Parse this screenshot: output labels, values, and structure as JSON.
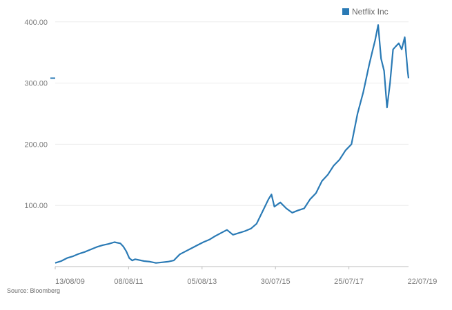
{
  "legend": {
    "label": "Netflix Inc",
    "color": "#2a7ab5"
  },
  "source": "Source: Bloomberg",
  "price_marker": {
    "value": 308,
    "color": "#2a7ab5"
  },
  "chart_data": {
    "type": "line",
    "title": "",
    "xlabel": "",
    "ylabel": "",
    "ylim": [
      0,
      420
    ],
    "grid": true,
    "legend_position": "top-right",
    "y_ticks": [
      "100.00",
      "200.00",
      "300.00",
      "400.00"
    ],
    "y_tick_values": [
      100,
      200,
      300,
      400
    ],
    "x_ticks": [
      "13/08/09",
      "08/08/11",
      "05/08/13",
      "30/07/15",
      "25/07/17",
      "22/07/19"
    ],
    "series": [
      {
        "name": "Netflix Inc",
        "color": "#2a7ab5",
        "x": [
          "2009-08-13",
          "2009-10-13",
          "2009-12-13",
          "2010-02-13",
          "2010-04-13",
          "2010-06-13",
          "2010-08-13",
          "2010-10-13",
          "2010-12-13",
          "2011-02-13",
          "2011-04-13",
          "2011-06-13",
          "2011-07-13",
          "2011-08-13",
          "2011-09-13",
          "2011-10-13",
          "2011-11-13",
          "2011-12-13",
          "2012-02-13",
          "2012-04-13",
          "2012-06-13",
          "2012-08-13",
          "2012-10-13",
          "2012-12-13",
          "2013-02-13",
          "2013-04-13",
          "2013-06-13",
          "2013-08-13",
          "2013-10-13",
          "2013-12-13",
          "2014-02-13",
          "2014-04-13",
          "2014-06-13",
          "2014-08-13",
          "2014-10-13",
          "2014-12-13",
          "2015-02-13",
          "2015-04-13",
          "2015-06-13",
          "2015-08-13",
          "2015-09-13",
          "2015-10-13",
          "2015-12-13",
          "2016-02-13",
          "2016-04-13",
          "2016-06-13",
          "2016-08-13",
          "2016-10-13",
          "2016-12-13",
          "2017-02-13",
          "2017-04-13",
          "2017-06-13",
          "2017-08-13",
          "2017-10-13",
          "2017-12-13",
          "2018-02-13",
          "2018-04-13",
          "2018-06-13",
          "2018-07-13",
          "2018-08-13",
          "2018-09-13",
          "2018-10-13",
          "2018-11-13",
          "2018-12-13",
          "2019-01-13",
          "2019-02-13",
          "2019-03-13",
          "2019-04-13",
          "2019-05-13",
          "2019-06-13",
          "2019-07-13",
          "2019-07-22"
        ],
        "values": [
          6,
          9,
          14,
          17,
          21,
          24,
          28,
          32,
          35,
          37,
          40,
          38,
          33,
          25,
          14,
          10,
          12,
          11,
          9,
          8,
          6,
          7,
          8,
          10,
          20,
          25,
          30,
          35,
          40,
          44,
          50,
          55,
          60,
          52,
          55,
          58,
          62,
          70,
          90,
          110,
          118,
          98,
          105,
          95,
          88,
          92,
          95,
          110,
          120,
          140,
          150,
          165,
          175,
          190,
          200,
          250,
          285,
          330,
          350,
          370,
          395,
          340,
          320,
          260,
          300,
          355,
          360,
          365,
          355,
          375,
          320,
          308
        ]
      }
    ]
  }
}
